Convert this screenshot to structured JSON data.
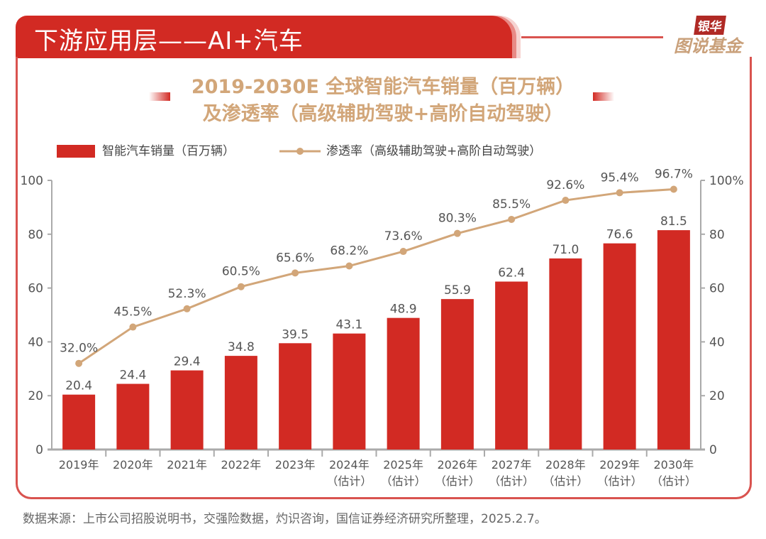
{
  "header": {
    "title": "下游应用层——AI+汽车",
    "logo_top": "银华",
    "logo_bottom": "图说基金"
  },
  "chart_data": {
    "type": "bar+line",
    "title_line1": "2019-2030E 全球智能汽车销量（百万辆）",
    "title_line2": "及渗透率（高级辅助驾驶+高阶自动驾驶）",
    "categories": [
      "2019年",
      "2020年",
      "2021年",
      "2022年",
      "2023年",
      "2024年",
      "2025年",
      "2026年",
      "2027年",
      "2028年",
      "2029年",
      "2030年"
    ],
    "category_sub": [
      "",
      "",
      "",
      "",
      "",
      "（估计）",
      "（估计）",
      "（估计）",
      "（估计）",
      "（估计）",
      "（估计）",
      "（估计）"
    ],
    "series": [
      {
        "name": "智能汽车销量（百万辆）",
        "type": "bar",
        "axis": "left",
        "color": "#d22a23",
        "values": [
          20.4,
          24.4,
          29.4,
          34.8,
          39.5,
          43.1,
          48.9,
          55.9,
          62.4,
          71.0,
          76.6,
          81.5
        ],
        "labels": [
          "20.4",
          "24.4",
          "29.4",
          "34.8",
          "39.5",
          "43.1",
          "48.9",
          "55.9",
          "62.4",
          "71.0",
          "76.6",
          "81.5"
        ]
      },
      {
        "name": "渗透率（高级辅助驾驶+高阶自动驾驶）",
        "type": "line",
        "axis": "right",
        "color": "#d2a679",
        "values": [
          32.0,
          45.5,
          52.3,
          60.5,
          65.6,
          68.2,
          73.6,
          80.3,
          85.5,
          92.6,
          95.4,
          96.7
        ],
        "labels": [
          "32.0%",
          "45.5%",
          "52.3%",
          "60.5%",
          "65.6%",
          "68.2%",
          "73.6%",
          "80.3%",
          "85.5%",
          "92.6%",
          "95.4%",
          "96.7%"
        ]
      }
    ],
    "ylim": [
      0,
      100
    ],
    "y_ticks": [
      "0",
      "20",
      "40",
      "60",
      "80",
      "100"
    ],
    "y2lim": [
      0,
      100
    ],
    "y2_ticks": [
      "0",
      "20",
      "40",
      "60",
      "80",
      "100%"
    ],
    "legend": "top-left",
    "grid": false
  },
  "source": "数据来源：上市公司招股说明书，交强险数据，灼识咨询，国信证券经济研究所整理，2025.2.7。"
}
